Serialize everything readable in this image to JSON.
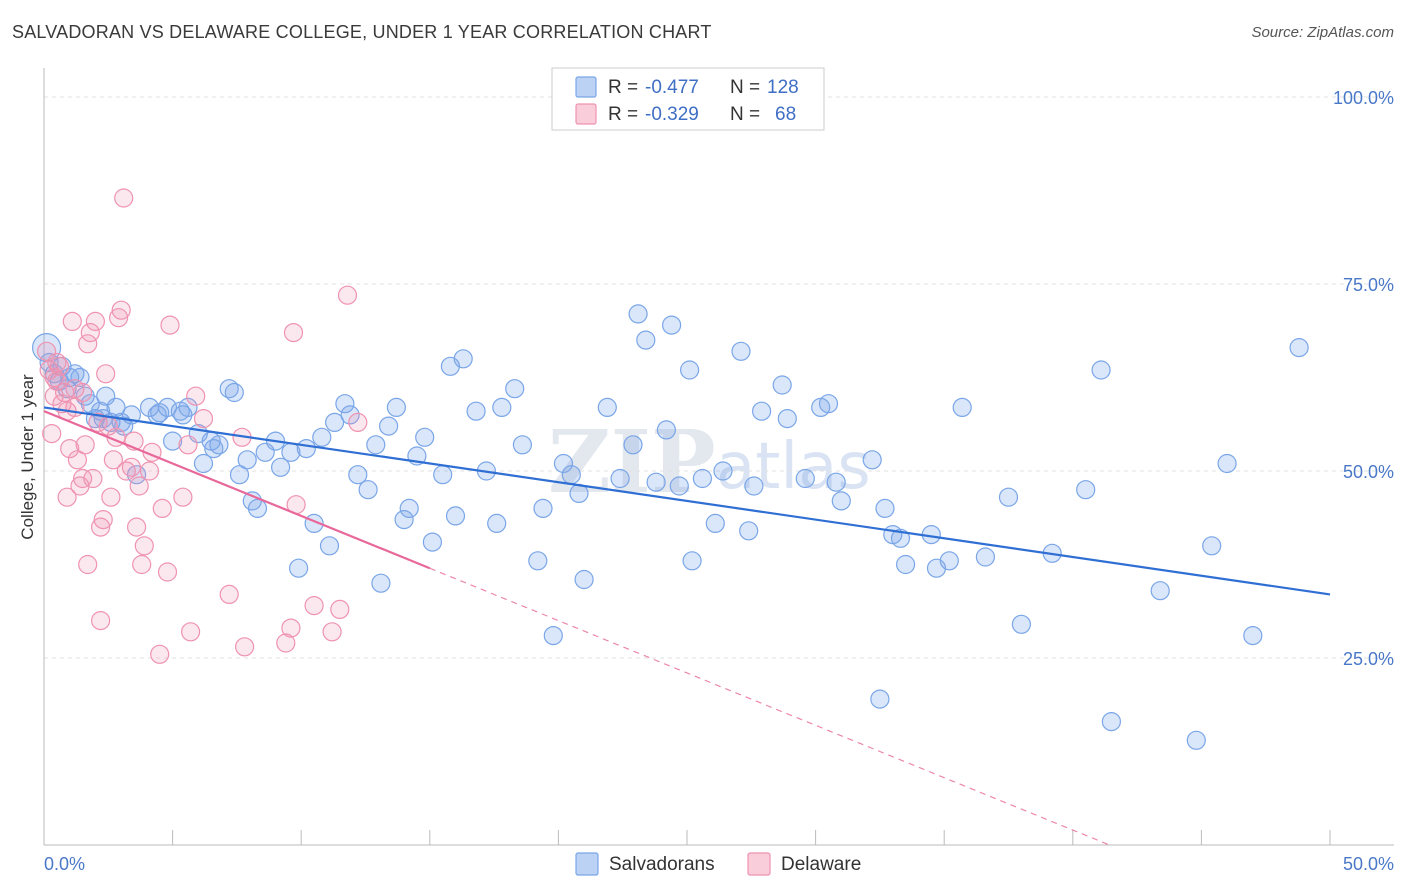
{
  "header": {
    "title": "SALVADORAN VS DELAWARE COLLEGE, UNDER 1 YEAR CORRELATION CHART",
    "source": "Source: ZipAtlas.com"
  },
  "watermark": {
    "zip": "ZIP",
    "atlas": "atlas"
  },
  "legend": {
    "rows": [
      {
        "r_label": "R =",
        "r_value": "-0.477",
        "n_label": "N =",
        "n_value": "128",
        "color": "#7aa6e8"
      },
      {
        "r_label": "R =",
        "r_value": "-0.329",
        "n_label": "N =",
        "n_value": "68",
        "color": "#ef93b0"
      }
    ]
  },
  "bottom_legend": [
    {
      "label": "Salvadorans",
      "color": "#7aa6e8"
    },
    {
      "label": "Delaware",
      "color": "#ef93b0"
    }
  ],
  "chart_data": {
    "type": "scatter",
    "title": "SALVADORAN VS DELAWARE COLLEGE, UNDER 1 YEAR CORRELATION CHART",
    "xlabel": "",
    "ylabel": "College, Under 1 year",
    "xlim": [
      0,
      50
    ],
    "ylim": [
      0,
      105
    ],
    "x_tick_labels": {
      "min": "0.0%",
      "max": "50.0%"
    },
    "y_ticks": [
      {
        "value": 100,
        "label": "100.0%"
      },
      {
        "value": 75,
        "label": "75.0%"
      },
      {
        "value": 50,
        "label": "50.0%"
      },
      {
        "value": 25,
        "label": "25.0%"
      }
    ],
    "series": [
      {
        "name": "Salvadorans",
        "color": "#7aa6e8",
        "line_color": "#2f6fd4",
        "trend": {
          "x0": 0,
          "y0": 58.5,
          "x1": 50,
          "y1": 33.5,
          "dashed_to": null
        },
        "points": [
          [
            0.1,
            66.5
          ],
          [
            0.2,
            64.5
          ],
          [
            0.4,
            63
          ],
          [
            0.6,
            62
          ],
          [
            0.7,
            64
          ],
          [
            0.9,
            61
          ],
          [
            1.2,
            63
          ],
          [
            1.4,
            62.5
          ],
          [
            1.6,
            60
          ],
          [
            1.8,
            59
          ],
          [
            2.0,
            57
          ],
          [
            2.2,
            58
          ],
          [
            2.4,
            60
          ],
          [
            2.6,
            56.5
          ],
          [
            2.8,
            58.5
          ],
          [
            3.0,
            56.5
          ],
          [
            3.4,
            57.5
          ],
          [
            3.6,
            49.5
          ],
          [
            4.1,
            58.5
          ],
          [
            4.4,
            57.5
          ],
          [
            4.8,
            58.5
          ],
          [
            5.0,
            54
          ],
          [
            5.3,
            58
          ],
          [
            5.6,
            58.5
          ],
          [
            6.0,
            55
          ],
          [
            6.2,
            51
          ],
          [
            6.5,
            54
          ],
          [
            6.8,
            53.5
          ],
          [
            7.2,
            61
          ],
          [
            7.4,
            60.5
          ],
          [
            7.6,
            49.5
          ],
          [
            7.9,
            51.5
          ],
          [
            8.1,
            46
          ],
          [
            8.3,
            45
          ],
          [
            8.6,
            52.5
          ],
          [
            9.0,
            54
          ],
          [
            9.2,
            50.5
          ],
          [
            9.6,
            52.5
          ],
          [
            9.9,
            37
          ],
          [
            10.2,
            53
          ],
          [
            10.5,
            43
          ],
          [
            10.8,
            54.5
          ],
          [
            11.1,
            40
          ],
          [
            11.3,
            56.5
          ],
          [
            11.7,
            59
          ],
          [
            11.9,
            57.5
          ],
          [
            12.2,
            49.5
          ],
          [
            12.6,
            47.5
          ],
          [
            12.9,
            53.5
          ],
          [
            13.1,
            35
          ],
          [
            13.4,
            56
          ],
          [
            13.7,
            58.5
          ],
          [
            14.0,
            43.5
          ],
          [
            14.2,
            45
          ],
          [
            14.5,
            52
          ],
          [
            14.8,
            54.5
          ],
          [
            15.1,
            40.5
          ],
          [
            15.5,
            49.5
          ],
          [
            15.8,
            64
          ],
          [
            16.0,
            44
          ],
          [
            16.3,
            65
          ],
          [
            16.8,
            58
          ],
          [
            17.2,
            50
          ],
          [
            17.6,
            43
          ],
          [
            17.8,
            58.5
          ],
          [
            18.3,
            61
          ],
          [
            18.6,
            53.5
          ],
          [
            19.2,
            38
          ],
          [
            19.4,
            45
          ],
          [
            19.8,
            28
          ],
          [
            20.2,
            51
          ],
          [
            20.5,
            49.5
          ],
          [
            20.8,
            47
          ],
          [
            21.0,
            35.5
          ],
          [
            21.9,
            58.5
          ],
          [
            22.4,
            49
          ],
          [
            22.9,
            53.5
          ],
          [
            23.1,
            71
          ],
          [
            23.4,
            67.5
          ],
          [
            23.8,
            48.5
          ],
          [
            24.2,
            55.5
          ],
          [
            24.4,
            69.5
          ],
          [
            24.7,
            48
          ],
          [
            25.1,
            63.5
          ],
          [
            25.2,
            38
          ],
          [
            25.6,
            49
          ],
          [
            26.1,
            43
          ],
          [
            26.4,
            50
          ],
          [
            27.1,
            66
          ],
          [
            27.4,
            42
          ],
          [
            27.6,
            48
          ],
          [
            27.9,
            58
          ],
          [
            28.7,
            61.5
          ],
          [
            28.9,
            57
          ],
          [
            29.6,
            49
          ],
          [
            30.2,
            58.5
          ],
          [
            30.5,
            59
          ],
          [
            30.8,
            48.5
          ],
          [
            31.0,
            46
          ],
          [
            32.2,
            51.5
          ],
          [
            32.5,
            19.5
          ],
          [
            32.7,
            45
          ],
          [
            33.0,
            41.5
          ],
          [
            33.3,
            41
          ],
          [
            33.5,
            37.5
          ],
          [
            34.5,
            41.5
          ],
          [
            34.7,
            37
          ],
          [
            35.2,
            38
          ],
          [
            35.7,
            58.5
          ],
          [
            36.6,
            38.5
          ],
          [
            37.5,
            46.5
          ],
          [
            38.0,
            29.5
          ],
          [
            39.2,
            39
          ],
          [
            40.5,
            47.5
          ],
          [
            41.1,
            63.5
          ],
          [
            41.5,
            16.5
          ],
          [
            43.4,
            34
          ],
          [
            44.8,
            14
          ],
          [
            45.4,
            40
          ],
          [
            46.0,
            51
          ],
          [
            47.0,
            28
          ],
          [
            48.8,
            66.5
          ],
          [
            1.0,
            62.5
          ],
          [
            2.3,
            57
          ],
          [
            5.4,
            57.5
          ],
          [
            6.6,
            53
          ],
          [
            3.1,
            56
          ],
          [
            4.5,
            57.8
          ]
        ]
      },
      {
        "name": "Delaware",
        "color": "#ef93b0",
        "line_color": "#e8689a",
        "trend": {
          "x0": 0,
          "y0": 58,
          "x1": 15,
          "y1": 37,
          "dashed_to": {
            "x": 50,
            "y": -12
          }
        },
        "points": [
          [
            0.1,
            66
          ],
          [
            0.2,
            63.5
          ],
          [
            0.3,
            55
          ],
          [
            0.4,
            60
          ],
          [
            0.5,
            62
          ],
          [
            0.6,
            64
          ],
          [
            0.7,
            59
          ],
          [
            0.9,
            58
          ],
          [
            0.9,
            46.5
          ],
          [
            1.0,
            53
          ],
          [
            1.1,
            70
          ],
          [
            1.2,
            61
          ],
          [
            1.3,
            51.5
          ],
          [
            1.4,
            48
          ],
          [
            1.5,
            49
          ],
          [
            1.6,
            53.5
          ],
          [
            1.7,
            37.5
          ],
          [
            1.7,
            67
          ],
          [
            1.8,
            68.5
          ],
          [
            1.9,
            49
          ],
          [
            2.0,
            70
          ],
          [
            2.1,
            56.5
          ],
          [
            2.2,
            30
          ],
          [
            2.2,
            42.5
          ],
          [
            2.3,
            43.5
          ],
          [
            2.4,
            63
          ],
          [
            2.5,
            56
          ],
          [
            2.6,
            46.5
          ],
          [
            2.8,
            54.5
          ],
          [
            2.9,
            70.5
          ],
          [
            3.0,
            71.5
          ],
          [
            3.1,
            86.5
          ],
          [
            3.2,
            50
          ],
          [
            3.4,
            50.5
          ],
          [
            3.6,
            42.5
          ],
          [
            3.7,
            48
          ],
          [
            3.8,
            37.5
          ],
          [
            3.9,
            40
          ],
          [
            4.1,
            50
          ],
          [
            4.2,
            52.5
          ],
          [
            4.6,
            45
          ],
          [
            4.8,
            36.5
          ],
          [
            4.9,
            69.5
          ],
          [
            5.4,
            46.5
          ],
          [
            5.6,
            53.5
          ],
          [
            5.7,
            28.5
          ],
          [
            5.9,
            60
          ],
          [
            6.2,
            57
          ],
          [
            4.5,
            25.5
          ],
          [
            7.2,
            33.5
          ],
          [
            7.7,
            54.5
          ],
          [
            7.8,
            26.5
          ],
          [
            9.4,
            27
          ],
          [
            9.6,
            29
          ],
          [
            9.7,
            68.5
          ],
          [
            9.8,
            45.5
          ],
          [
            10.5,
            32
          ],
          [
            11.2,
            28.5
          ],
          [
            11.5,
            31.5
          ],
          [
            11.8,
            73.5
          ],
          [
            12.2,
            56.5
          ],
          [
            0.8,
            60.5
          ],
          [
            1.2,
            58.5
          ],
          [
            0.5,
            64.5
          ],
          [
            2.7,
            51.5
          ],
          [
            1.5,
            60.5
          ],
          [
            3.5,
            54
          ],
          [
            0.4,
            62.5
          ]
        ]
      }
    ]
  }
}
